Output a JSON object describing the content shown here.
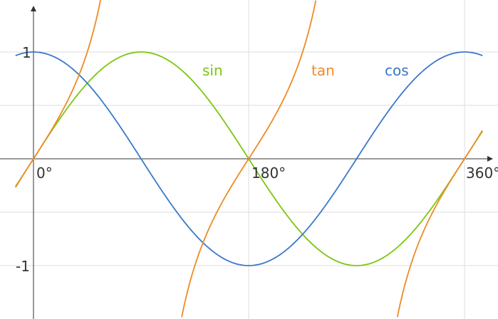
{
  "chart_data": {
    "type": "line",
    "x_unit": "degrees",
    "xlim": [
      -15,
      215
    ],
    "ylim": [
      -1.5,
      1.5
    ],
    "grid": true,
    "x_ticks": [
      {
        "value": 0,
        "label": "0°"
      },
      {
        "value": 180,
        "label": "180°"
      },
      {
        "value": 360,
        "label": "360°"
      }
    ],
    "y_ticks": [
      {
        "value": 1,
        "label": "1"
      },
      {
        "value": -1,
        "label": "-1"
      }
    ],
    "series": [
      {
        "name": "sin",
        "color": "#7ac70c",
        "function": "sin"
      },
      {
        "name": "cos",
        "color": "#3a78c9",
        "function": "cos"
      },
      {
        "name": "tan",
        "color": "#f08a25",
        "function": "tan"
      }
    ]
  }
}
